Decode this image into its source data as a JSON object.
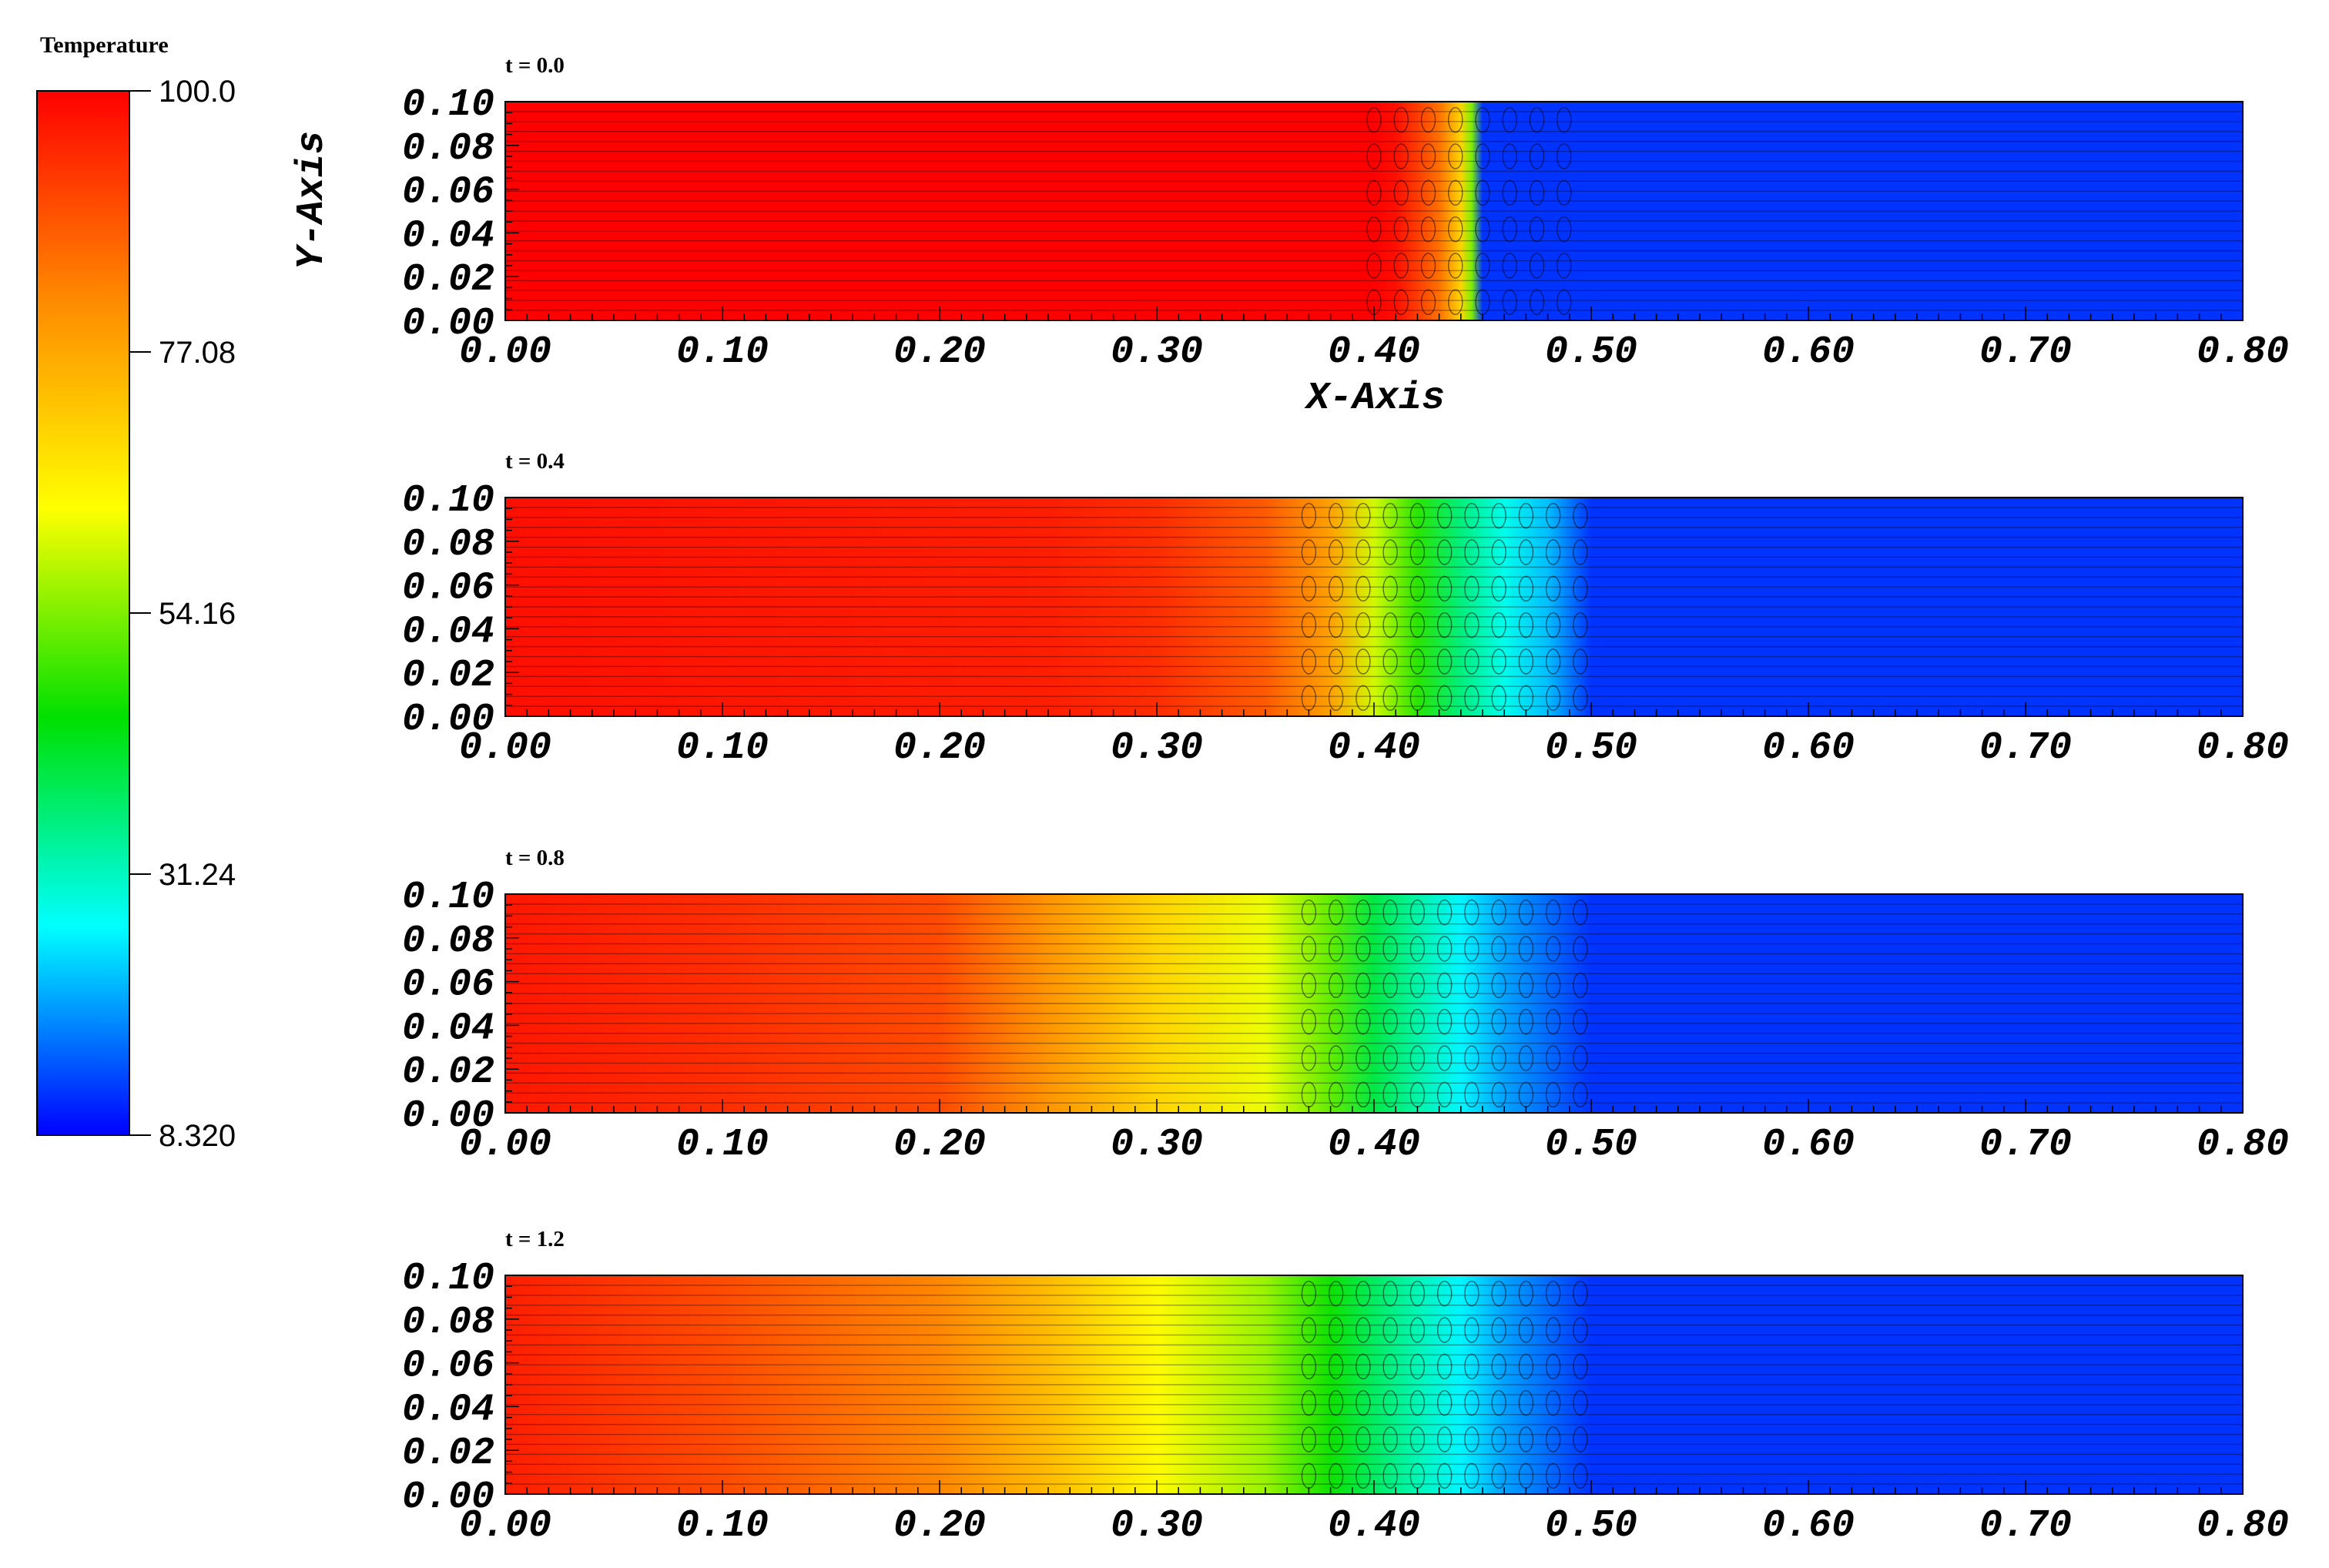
{
  "colorbar": {
    "title": "Temperature",
    "labels": [
      "100.0",
      "77.08",
      "54.16",
      "31.24",
      "8.320"
    ],
    "range": [
      8.32,
      100.0
    ],
    "colors": [
      "#ff0000",
      "#ff8a00",
      "#ffff00",
      "#00e000",
      "#00ffff",
      "#0000ff"
    ]
  },
  "x_axis_label": "X-Axis",
  "y_axis_label": "Y-Axis",
  "chart_data": {
    "type": "heatmap",
    "variable": "Temperature",
    "xlim": [
      0.0,
      0.8
    ],
    "ylim": [
      0.0,
      0.1
    ],
    "x_ticks": [
      "0.00",
      "0.10",
      "0.20",
      "0.30",
      "0.40",
      "0.50",
      "0.60",
      "0.70",
      "0.80"
    ],
    "y_ticks": [
      "0.00",
      "0.02",
      "0.04",
      "0.06",
      "0.08",
      "0.10"
    ],
    "panels": [
      {
        "title": "t = 0.0",
        "profile_x": [
          0.0,
          0.4,
          0.41,
          0.42,
          0.43,
          0.435,
          0.44,
          0.445,
          0.45,
          0.8
        ],
        "profile_T": [
          100.0,
          100.0,
          98,
          92,
          85,
          78,
          70,
          54,
          12,
          12
        ]
      },
      {
        "title": "t = 0.4",
        "profile_x": [
          0.0,
          0.25,
          0.3,
          0.35,
          0.38,
          0.4,
          0.42,
          0.44,
          0.46,
          0.48,
          0.5,
          0.8
        ],
        "profile_T": [
          98,
          96,
          94,
          88,
          78,
          60,
          48,
          36,
          28,
          22,
          12,
          12
        ]
      },
      {
        "title": "t = 0.8",
        "profile_x": [
          0.0,
          0.1,
          0.2,
          0.25,
          0.3,
          0.35,
          0.38,
          0.4,
          0.42,
          0.44,
          0.46,
          0.48,
          0.5,
          0.8
        ],
        "profile_T": [
          97,
          94,
          90,
          80,
          70,
          62,
          52,
          40,
          33,
          26,
          20,
          16,
          12,
          12
        ]
      },
      {
        "title": "t = 1.2",
        "profile_x": [
          0.0,
          0.1,
          0.2,
          0.25,
          0.3,
          0.35,
          0.38,
          0.4,
          0.42,
          0.44,
          0.46,
          0.48,
          0.5,
          0.8
        ],
        "profile_T": [
          96,
          90,
          82,
          74,
          64,
          56,
          46,
          38,
          32,
          26,
          20,
          16,
          12,
          12
        ]
      }
    ]
  }
}
